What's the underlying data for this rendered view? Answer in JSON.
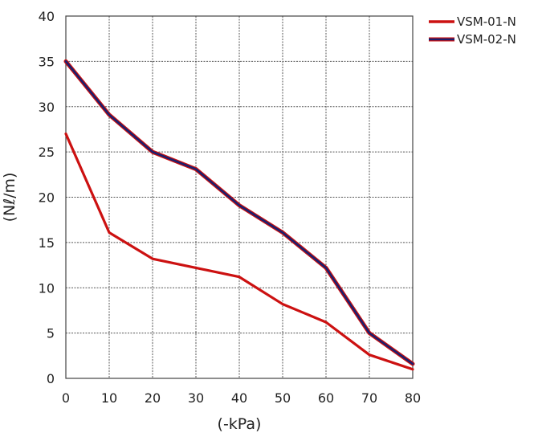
{
  "chart_data": {
    "type": "line",
    "title": "",
    "xlabel": "(-kPa)",
    "ylabel": "(Nℓ/m)",
    "x": [
      0,
      10,
      20,
      30,
      40,
      50,
      60,
      70,
      80
    ],
    "xlim": [
      0,
      80
    ],
    "ylim": [
      0,
      40
    ],
    "x_ticks": [
      "0",
      "10",
      "20",
      "30",
      "40",
      "50",
      "60",
      "70",
      "80"
    ],
    "y_ticks": [
      "0",
      "5",
      "10",
      "15",
      "20",
      "25",
      "30",
      "35",
      "40"
    ],
    "grid": true,
    "legend_position": "top-right, outside plot",
    "series": [
      {
        "name": "VSM-01-N",
        "color": "#cc1111",
        "values": [
          27.0,
          16.1,
          13.2,
          12.2,
          11.2,
          8.2,
          6.2,
          2.6,
          1.0
        ]
      },
      {
        "name": "VSM-02-N",
        "color": "#1a1f6e",
        "edge_color": "#cc1111",
        "values": [
          35.0,
          29.1,
          25.0,
          23.1,
          19.1,
          16.1,
          12.2,
          5.0,
          1.6
        ]
      }
    ]
  }
}
